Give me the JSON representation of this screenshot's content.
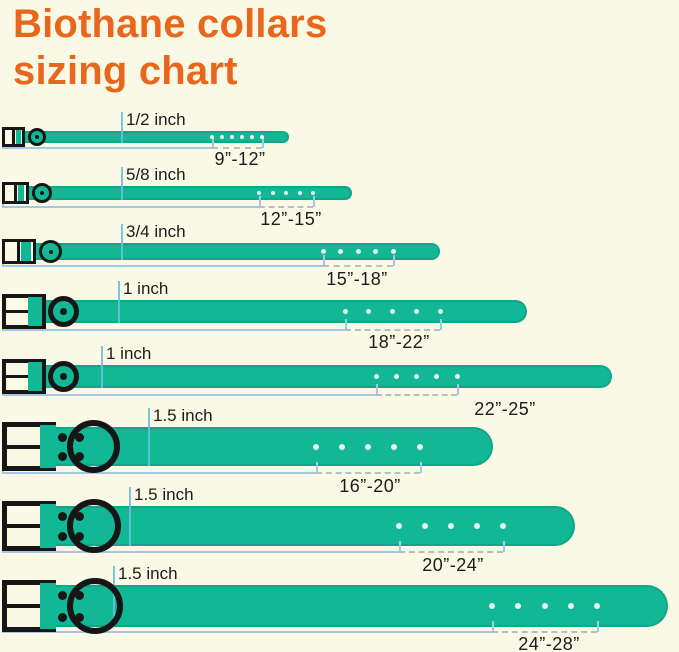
{
  "title": {
    "line1": "Biothane collars",
    "line2": "sizing chart"
  },
  "colors": {
    "background": "#FAF9E6",
    "title": "#E8671C",
    "strap": "#12B795",
    "buckle": "#161616",
    "bracket": "#A6C7E3",
    "dash": "#B4C0C4",
    "tick": "#6AC0DC",
    "text": "#1C1C1C",
    "hole": "#E6F7F0"
  },
  "collars": [
    {
      "width_label": "1/2 inch",
      "size_range": "9”-12”",
      "holes": 6
    },
    {
      "width_label": "5/8 inch",
      "size_range": "12”-15”",
      "holes": 5
    },
    {
      "width_label": "3/4 inch",
      "size_range": "15”-18”",
      "holes": 5
    },
    {
      "width_label": "1 inch",
      "size_range": "18”-22”",
      "holes": 5
    },
    {
      "width_label": "1 inch",
      "size_range": "22”-25”",
      "holes": 5
    },
    {
      "width_label": "1.5 inch",
      "size_range": "16”-20”",
      "holes": 5
    },
    {
      "width_label": "1.5 inch",
      "size_range": "20”-24”",
      "holes": 5
    },
    {
      "width_label": "1.5 inch",
      "size_range": "24”-28”",
      "holes": 5
    }
  ]
}
